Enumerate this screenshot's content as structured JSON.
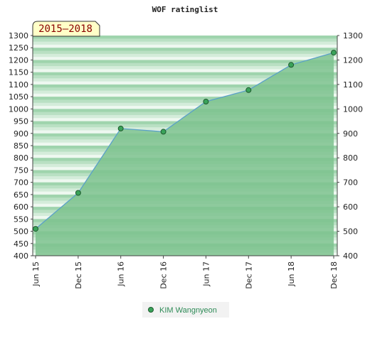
{
  "chart_data": {
    "type": "area",
    "title": "WOF ratinglist",
    "badge": "2015–2018",
    "xlabel": "",
    "ylabel": "",
    "categories": [
      "Jun 15",
      "Dec 15",
      "Jun 16",
      "Dec 16",
      "Jun 17",
      "Dec 17",
      "Jun 18",
      "Dec 18"
    ],
    "series": [
      {
        "name": "KIM Wangnyeon",
        "values": [
          510,
          657,
          920,
          907,
          1030,
          1077,
          1180,
          1230
        ]
      }
    ],
    "left_ticks": [
      400,
      450,
      500,
      550,
      600,
      650,
      700,
      750,
      800,
      850,
      900,
      950,
      1000,
      1050,
      1100,
      1150,
      1200,
      1250,
      1300
    ],
    "right_ticks": [
      400,
      500,
      600,
      700,
      800,
      900,
      1000,
      1100,
      1200,
      1300
    ],
    "ylim": [
      400,
      1300
    ],
    "legend_position": "bottom",
    "colors": {
      "area_fill": "#7cc28e",
      "line": "#5aa0c8",
      "marker_fill": "#3aa35a",
      "marker_stroke": "#1f5a2e",
      "badge_fill": "#ffffc8",
      "band_dark": "#9fd4ad",
      "band_light": "#eef8f0"
    }
  }
}
